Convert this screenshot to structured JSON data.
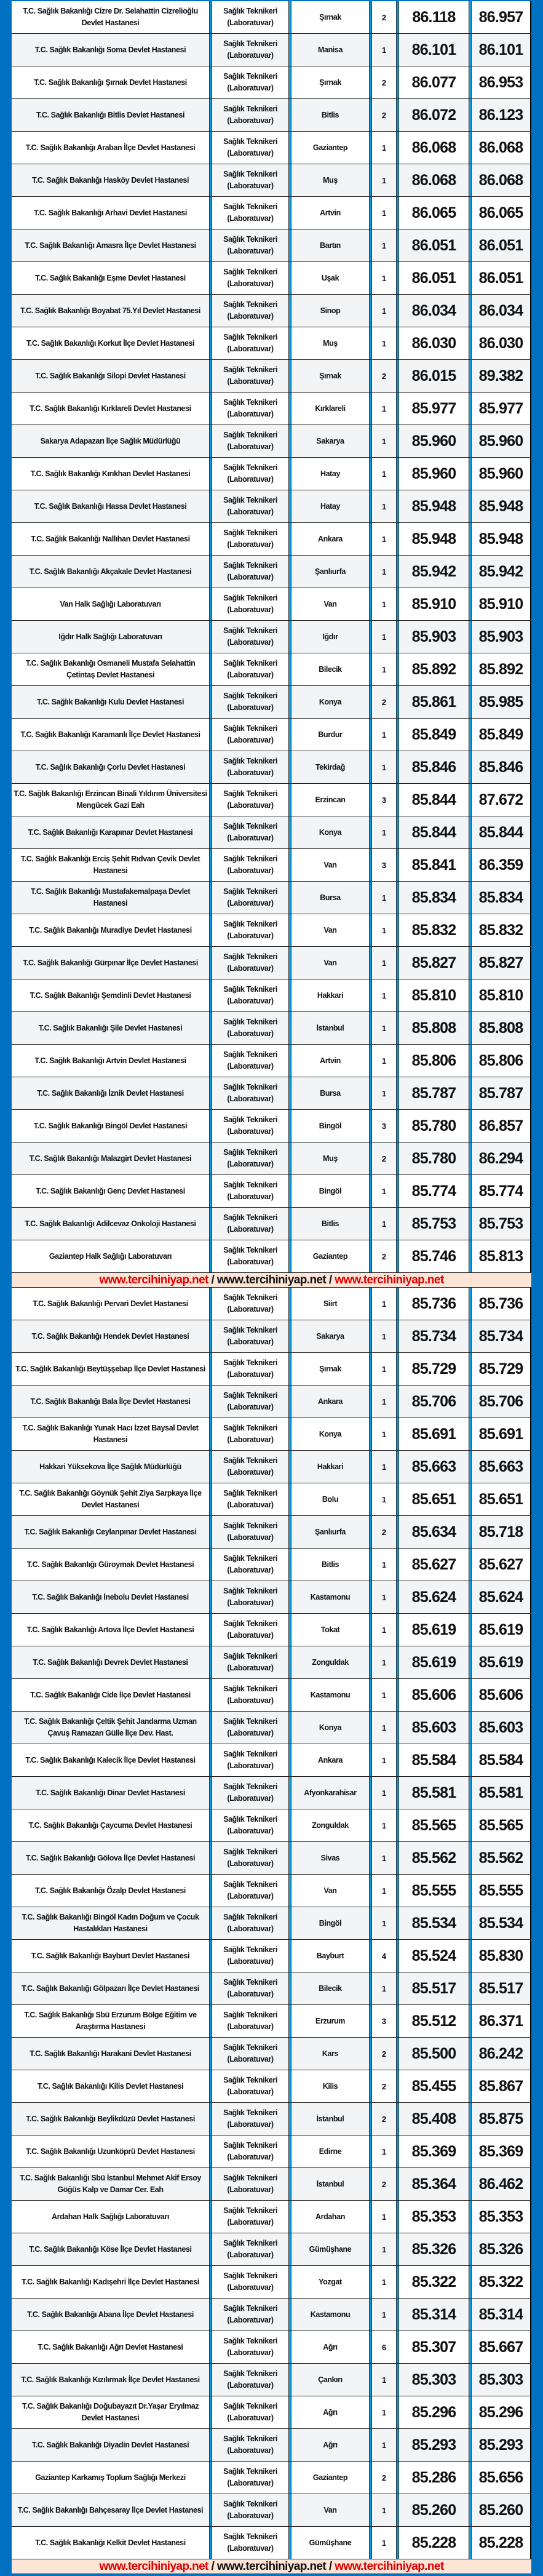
{
  "colors": {
    "frame": "#0070c0",
    "separator": "#0a9be0",
    "banner_bg": "#fce4d6",
    "banner_red": "#e00000",
    "row_alt": "#f2f4f5"
  },
  "banner": {
    "part1": "www.tercihiniyap.net",
    "slash1": " / ",
    "part2": "www.tercihiniyap.net",
    "slash2": " / ",
    "part3": "www.tercihiniyap.net"
  },
  "sections": [
    {
      "rows": [
        [
          "T.C. Sağlık Bakanlığı Cizre Dr. Selahattin Cizrelioğlu Devlet Hastanesi",
          "Sağlık Teknikeri (Laboratuvar)",
          "Şırnak",
          "2",
          "86.118",
          "86.957"
        ],
        [
          "T.C. Sağlık Bakanlığı Soma Devlet Hastanesi",
          "Sağlık Teknikeri (Laboratuvar)",
          "Manisa",
          "1",
          "86.101",
          "86.101"
        ],
        [
          "T.C. Sağlık Bakanlığı Şırnak Devlet Hastanesi",
          "Sağlık Teknikeri (Laboratuvar)",
          "Şırnak",
          "2",
          "86.077",
          "86.953"
        ],
        [
          "T.C. Sağlık Bakanlığı Bitlis Devlet Hastanesi",
          "Sağlık Teknikeri (Laboratuvar)",
          "Bitlis",
          "2",
          "86.072",
          "86.123"
        ],
        [
          "T.C. Sağlık Bakanlığı Araban İlçe Devlet Hastanesi",
          "Sağlık Teknikeri (Laboratuvar)",
          "Gaziantep",
          "1",
          "86.068",
          "86.068"
        ],
        [
          "T.C. Sağlık Bakanlığı Hasköy Devlet Hastanesi",
          "Sağlık Teknikeri (Laboratuvar)",
          "Muş",
          "1",
          "86.068",
          "86.068"
        ],
        [
          "T.C. Sağlık Bakanlığı Arhavi Devlet Hastanesi",
          "Sağlık Teknikeri (Laboratuvar)",
          "Artvin",
          "1",
          "86.065",
          "86.065"
        ],
        [
          "T.C. Sağlık Bakanlığı Amasra İlçe Devlet Hastanesi",
          "Sağlık Teknikeri (Laboratuvar)",
          "Bartın",
          "1",
          "86.051",
          "86.051"
        ],
        [
          "T.C. Sağlık Bakanlığı Eşme Devlet Hastanesi",
          "Sağlık Teknikeri (Laboratuvar)",
          "Uşak",
          "1",
          "86.051",
          "86.051"
        ],
        [
          "T.C. Sağlık Bakanlığı Boyabat 75.Yıl Devlet Hastanesi",
          "Sağlık Teknikeri (Laboratuvar)",
          "Sinop",
          "1",
          "86.034",
          "86.034"
        ],
        [
          "T.C. Sağlık Bakanlığı Korkut İlçe Devlet Hastanesi",
          "Sağlık Teknikeri (Laboratuvar)",
          "Muş",
          "1",
          "86.030",
          "86.030"
        ],
        [
          "T.C. Sağlık Bakanlığı Silopi Devlet Hastanesi",
          "Sağlık Teknikeri (Laboratuvar)",
          "Şırnak",
          "2",
          "86.015",
          "89.382"
        ],
        [
          "T.C. Sağlık Bakanlığı Kırklareli Devlet Hastanesi",
          "Sağlık Teknikeri (Laboratuvar)",
          "Kırklareli",
          "1",
          "85.977",
          "85.977"
        ],
        [
          "Sakarya Adapazarı İlçe Sağlık Müdürlüğü",
          "Sağlık Teknikeri (Laboratuvar)",
          "Sakarya",
          "1",
          "85.960",
          "85.960"
        ],
        [
          "T.C. Sağlık Bakanlığı Kırıkhan Devlet Hastanesi",
          "Sağlık Teknikeri (Laboratuvar)",
          "Hatay",
          "1",
          "85.960",
          "85.960"
        ],
        [
          "T.C. Sağlık Bakanlığı Hassa Devlet Hastanesi",
          "Sağlık Teknikeri (Laboratuvar)",
          "Hatay",
          "1",
          "85.948",
          "85.948"
        ],
        [
          "T.C. Sağlık Bakanlığı Nallıhan Devlet Hastanesi",
          "Sağlık Teknikeri (Laboratuvar)",
          "Ankara",
          "1",
          "85.948",
          "85.948"
        ],
        [
          "T.C. Sağlık Bakanlığı Akçakale Devlet Hastanesi",
          "Sağlık Teknikeri (Laboratuvar)",
          "Şanlıurfa",
          "1",
          "85.942",
          "85.942"
        ],
        [
          "Van Halk Sağlığı Laboratuvarı",
          "Sağlık Teknikeri (Laboratuvar)",
          "Van",
          "1",
          "85.910",
          "85.910"
        ],
        [
          "Iğdır Halk Sağlığı Laboratuvarı",
          "Sağlık Teknikeri (Laboratuvar)",
          "Iğdır",
          "1",
          "85.903",
          "85.903"
        ],
        [
          "T.C. Sağlık Bakanlığı Osmaneli Mustafa Selahattin Çetintaş Devlet Hastanesi",
          "Sağlık Teknikeri (Laboratuvar)",
          "Bilecik",
          "1",
          "85.892",
          "85.892"
        ],
        [
          "T.C. Sağlık Bakanlığı Kulu Devlet Hastanesi",
          "Sağlık Teknikeri (Laboratuvar)",
          "Konya",
          "2",
          "85.861",
          "85.985"
        ],
        [
          "T.C. Sağlık Bakanlığı Karamanlı İlçe Devlet Hastanesi",
          "Sağlık Teknikeri (Laboratuvar)",
          "Burdur",
          "1",
          "85.849",
          "85.849"
        ],
        [
          "T.C. Sağlık Bakanlığı Çorlu Devlet Hastanesi",
          "Sağlık Teknikeri (Laboratuvar)",
          "Tekirdağ",
          "1",
          "85.846",
          "85.846"
        ],
        [
          "T.C. Sağlık Bakanlığı Erzincan Binali Yıldırım Üniversitesi Mengücek Gazi Eah",
          "Sağlık Teknikeri (Laboratuvar)",
          "Erzincan",
          "3",
          "85.844",
          "87.672"
        ],
        [
          "T.C. Sağlık Bakanlığı Karapınar Devlet Hastanesi",
          "Sağlık Teknikeri (Laboratuvar)",
          "Konya",
          "1",
          "85.844",
          "85.844"
        ],
        [
          "T.C. Sağlık Bakanlığı Erciş Şehit Rıdvan Çevik Devlet Hastanesi",
          "Sağlık Teknikeri (Laboratuvar)",
          "Van",
          "3",
          "85.841",
          "86.359"
        ],
        [
          "T.C. Sağlık Bakanlığı Mustafakemalpaşa Devlet Hastanesi",
          "Sağlık Teknikeri (Laboratuvar)",
          "Bursa",
          "1",
          "85.834",
          "85.834"
        ],
        [
          "T.C. Sağlık Bakanlığı Muradiye Devlet Hastanesi",
          "Sağlık Teknikeri (Laboratuvar)",
          "Van",
          "1",
          "85.832",
          "85.832"
        ],
        [
          "T.C. Sağlık Bakanlığı Gürpınar İlçe Devlet Hastanesi",
          "Sağlık Teknikeri (Laboratuvar)",
          "Van",
          "1",
          "85.827",
          "85.827"
        ],
        [
          "T.C. Sağlık Bakanlığı Şemdinli Devlet Hastanesi",
          "Sağlık Teknikeri (Laboratuvar)",
          "Hakkari",
          "1",
          "85.810",
          "85.810"
        ],
        [
          "T.C. Sağlık Bakanlığı Şile Devlet Hastanesi",
          "Sağlık Teknikeri (Laboratuvar)",
          "İstanbul",
          "1",
          "85.808",
          "85.808"
        ],
        [
          "T.C. Sağlık Bakanlığı Artvin Devlet Hastanesi",
          "Sağlık Teknikeri (Laboratuvar)",
          "Artvin",
          "1",
          "85.806",
          "85.806"
        ],
        [
          "T.C. Sağlık Bakanlığı İznik Devlet Hastanesi",
          "Sağlık Teknikeri (Laboratuvar)",
          "Bursa",
          "1",
          "85.787",
          "85.787"
        ],
        [
          "T.C. Sağlık Bakanlığı Bingöl Devlet Hastanesi",
          "Sağlık Teknikeri (Laboratuvar)",
          "Bingöl",
          "3",
          "85.780",
          "86.857"
        ],
        [
          "T.C. Sağlık Bakanlığı Malazgirt Devlet Hastanesi",
          "Sağlık Teknikeri (Laboratuvar)",
          "Muş",
          "2",
          "85.780",
          "86.294"
        ],
        [
          "T.C. Sağlık Bakanlığı Genç Devlet Hastanesi",
          "Sağlık Teknikeri (Laboratuvar)",
          "Bingöl",
          "1",
          "85.774",
          "85.774"
        ],
        [
          "T.C. Sağlık Bakanlığı Adilcevaz Onkoloji Hastanesi",
          "Sağlık Teknikeri (Laboratuvar)",
          "Bitlis",
          "1",
          "85.753",
          "85.753"
        ],
        [
          "Gaziantep Halk Sağlığı Laboratuvarı",
          "Sağlık Teknikeri (Laboratuvar)",
          "Gaziantep",
          "2",
          "85.746",
          "85.813"
        ]
      ]
    },
    {
      "rows": [
        [
          "T.C. Sağlık Bakanlığı Pervari Devlet Hastanesi",
          "Sağlık Teknikeri (Laboratuvar)",
          "Siirt",
          "1",
          "85.736",
          "85.736"
        ],
        [
          "T.C. Sağlık Bakanlığı Hendek Devlet Hastanesi",
          "Sağlık Teknikeri (Laboratuvar)",
          "Sakarya",
          "1",
          "85.734",
          "85.734"
        ],
        [
          "T.C. Sağlık Bakanlığı Beytüşşebap İlçe Devlet Hastanesi",
          "Sağlık Teknikeri (Laboratuvar)",
          "Şırnak",
          "1",
          "85.729",
          "85.729"
        ],
        [
          "T.C. Sağlık Bakanlığı Bala İlçe Devlet Hastanesi",
          "Sağlık Teknikeri (Laboratuvar)",
          "Ankara",
          "1",
          "85.706",
          "85.706"
        ],
        [
          "T.C. Sağlık Bakanlığı Yunak Hacı İzzet Baysal Devlet Hastanesi",
          "Sağlık Teknikeri (Laboratuvar)",
          "Konya",
          "1",
          "85.691",
          "85.691"
        ],
        [
          "Hakkari Yüksekova İlçe Sağlık Müdürlüğü",
          "Sağlık Teknikeri (Laboratuvar)",
          "Hakkari",
          "1",
          "85.663",
          "85.663"
        ],
        [
          "T.C. Sağlık Bakanlığı Göynük Şehit Ziya Sarpkaya İlçe Devlet Hastanesi",
          "Sağlık Teknikeri (Laboratuvar)",
          "Bolu",
          "1",
          "85.651",
          "85.651"
        ],
        [
          "T.C. Sağlık Bakanlığı Ceylanpınar Devlet Hastanesi",
          "Sağlık Teknikeri (Laboratuvar)",
          "Şanlıurfa",
          "2",
          "85.634",
          "85.718"
        ],
        [
          "T.C. Sağlık Bakanlığı Güroymak Devlet Hastanesi",
          "Sağlık Teknikeri (Laboratuvar)",
          "Bitlis",
          "1",
          "85.627",
          "85.627"
        ],
        [
          "T.C. Sağlık Bakanlığı İnebolu Devlet Hastanesi",
          "Sağlık Teknikeri (Laboratuvar)",
          "Kastamonu",
          "1",
          "85.624",
          "85.624"
        ],
        [
          "T.C. Sağlık Bakanlığı Artova İlçe Devlet Hastanesi",
          "Sağlık Teknikeri (Laboratuvar)",
          "Tokat",
          "1",
          "85.619",
          "85.619"
        ],
        [
          "T.C. Sağlık Bakanlığı Devrek Devlet Hastanesi",
          "Sağlık Teknikeri (Laboratuvar)",
          "Zonguldak",
          "1",
          "85.619",
          "85.619"
        ],
        [
          "T.C. Sağlık Bakanlığı Cide İlçe Devlet Hastanesi",
          "Sağlık Teknikeri (Laboratuvar)",
          "Kastamonu",
          "1",
          "85.606",
          "85.606"
        ],
        [
          "T.C. Sağlık Bakanlığı Çeltik Şehit Jandarma Uzman Çavuş Ramazan Gülle İlçe Dev. Hast.",
          "Sağlık Teknikeri (Laboratuvar)",
          "Konya",
          "1",
          "85.603",
          "85.603"
        ],
        [
          "T.C. Sağlık Bakanlığı Kalecik İlçe Devlet Hastanesi",
          "Sağlık Teknikeri (Laboratuvar)",
          "Ankara",
          "1",
          "85.584",
          "85.584"
        ],
        [
          "T.C. Sağlık Bakanlığı Dinar Devlet Hastanesi",
          "Sağlık Teknikeri (Laboratuvar)",
          "Afyonkarahisar",
          "1",
          "85.581",
          "85.581"
        ],
        [
          "T.C. Sağlık Bakanlığı Çaycuma Devlet Hastanesi",
          "Sağlık Teknikeri (Laboratuvar)",
          "Zonguldak",
          "1",
          "85.565",
          "85.565"
        ],
        [
          "T.C. Sağlık Bakanlığı Gölova İlçe Devlet Hastanesi",
          "Sağlık Teknikeri (Laboratuvar)",
          "Sivas",
          "1",
          "85.562",
          "85.562"
        ],
        [
          "T.C. Sağlık Bakanlığı Özalp Devlet Hastanesi",
          "Sağlık Teknikeri (Laboratuvar)",
          "Van",
          "1",
          "85.555",
          "85.555"
        ],
        [
          "T.C. Sağlık Bakanlığı Bingöl Kadın Doğum ve Çocuk Hastalıkları Hastanesi",
          "Sağlık Teknikeri (Laboratuvar)",
          "Bingöl",
          "1",
          "85.534",
          "85.534"
        ],
        [
          "T.C. Sağlık Bakanlığı Bayburt Devlet Hastanesi",
          "Sağlık Teknikeri (Laboratuvar)",
          "Bayburt",
          "4",
          "85.524",
          "85.830"
        ],
        [
          "T.C. Sağlık Bakanlığı Gölpazarı İlçe Devlet Hastanesi",
          "Sağlık Teknikeri (Laboratuvar)",
          "Bilecik",
          "1",
          "85.517",
          "85.517"
        ],
        [
          "T.C. Sağlık Bakanlığı Sbü Erzurum Bölge Eğitim ve Araştırma Hastanesi",
          "Sağlık Teknikeri (Laboratuvar)",
          "Erzurum",
          "3",
          "85.512",
          "86.371"
        ],
        [
          "T.C. Sağlık Bakanlığı Harakani Devlet Hastanesi",
          "Sağlık Teknikeri (Laboratuvar)",
          "Kars",
          "2",
          "85.500",
          "86.242"
        ],
        [
          "T.C. Sağlık Bakanlığı Kilis Devlet Hastanesi",
          "Sağlık Teknikeri (Laboratuvar)",
          "Kilis",
          "2",
          "85.455",
          "85.867"
        ],
        [
          "T.C. Sağlık Bakanlığı Beylikdüzü Devlet Hastanesi",
          "Sağlık Teknikeri (Laboratuvar)",
          "İstanbul",
          "2",
          "85.408",
          "85.875"
        ],
        [
          "T.C. Sağlık Bakanlığı Uzunköprü Devlet Hastanesi",
          "Sağlık Teknikeri (Laboratuvar)",
          "Edirne",
          "1",
          "85.369",
          "85.369"
        ],
        [
          "T.C. Sağlık Bakanlığı Sbü İstanbul Mehmet Akif Ersoy Göğüs Kalp ve Damar Cer. Eah",
          "Sağlık Teknikeri (Laboratuvar)",
          "İstanbul",
          "2",
          "85.364",
          "86.462"
        ],
        [
          "Ardahan Halk Sağlığı Laboratuvarı",
          "Sağlık Teknikeri (Laboratuvar)",
          "Ardahan",
          "1",
          "85.353",
          "85.353"
        ],
        [
          "T.C. Sağlık Bakanlığı Köse İlçe Devlet Hastanesi",
          "Sağlık Teknikeri (Laboratuvar)",
          "Gümüşhane",
          "1",
          "85.326",
          "85.326"
        ],
        [
          "T.C. Sağlık Bakanlığı Kadışehri İlçe Devlet Hastanesi",
          "Sağlık Teknikeri (Laboratuvar)",
          "Yozgat",
          "1",
          "85.322",
          "85.322"
        ],
        [
          "T.C. Sağlık Bakanlığı Abana İlçe Devlet Hastanesi",
          "Sağlık Teknikeri (Laboratuvar)",
          "Kastamonu",
          "1",
          "85.314",
          "85.314"
        ],
        [
          "T.C. Sağlık Bakanlığı Ağrı Devlet Hastanesi",
          "Sağlık Teknikeri (Laboratuvar)",
          "Ağrı",
          "6",
          "85.307",
          "85.667"
        ],
        [
          "T.C. Sağlık Bakanlığı Kızılırmak İlçe Devlet Hastanesi",
          "Sağlık Teknikeri (Laboratuvar)",
          "Çankırı",
          "1",
          "85.303",
          "85.303"
        ],
        [
          "T.C. Sağlık Bakanlığı Doğubayazıt Dr.Yaşar Eryılmaz Devlet Hastanesi",
          "Sağlık Teknikeri (Laboratuvar)",
          "Ağrı",
          "1",
          "85.296",
          "85.296"
        ],
        [
          "T.C. Sağlık Bakanlığı Diyadin Devlet Hastanesi",
          "Sağlık Teknikeri (Laboratuvar)",
          "Ağrı",
          "1",
          "85.293",
          "85.293"
        ],
        [
          "Gaziantep Karkamış Toplum Sağlığı Merkezi",
          "Sağlık Teknikeri (Laboratuvar)",
          "Gaziantep",
          "2",
          "85.286",
          "85.656"
        ],
        [
          "T.C. Sağlık Bakanlığı Bahçesaray İlçe Devlet Hastanesi",
          "Sağlık Teknikeri (Laboratuvar)",
          "Van",
          "1",
          "85.260",
          "85.260"
        ],
        [
          "T.C. Sağlık Bakanlığı Kelkit Devlet Hastanesi",
          "Sağlık Teknikeri (Laboratuvar)",
          "Gümüşhane",
          "1",
          "85.228",
          "85.228"
        ]
      ]
    }
  ]
}
